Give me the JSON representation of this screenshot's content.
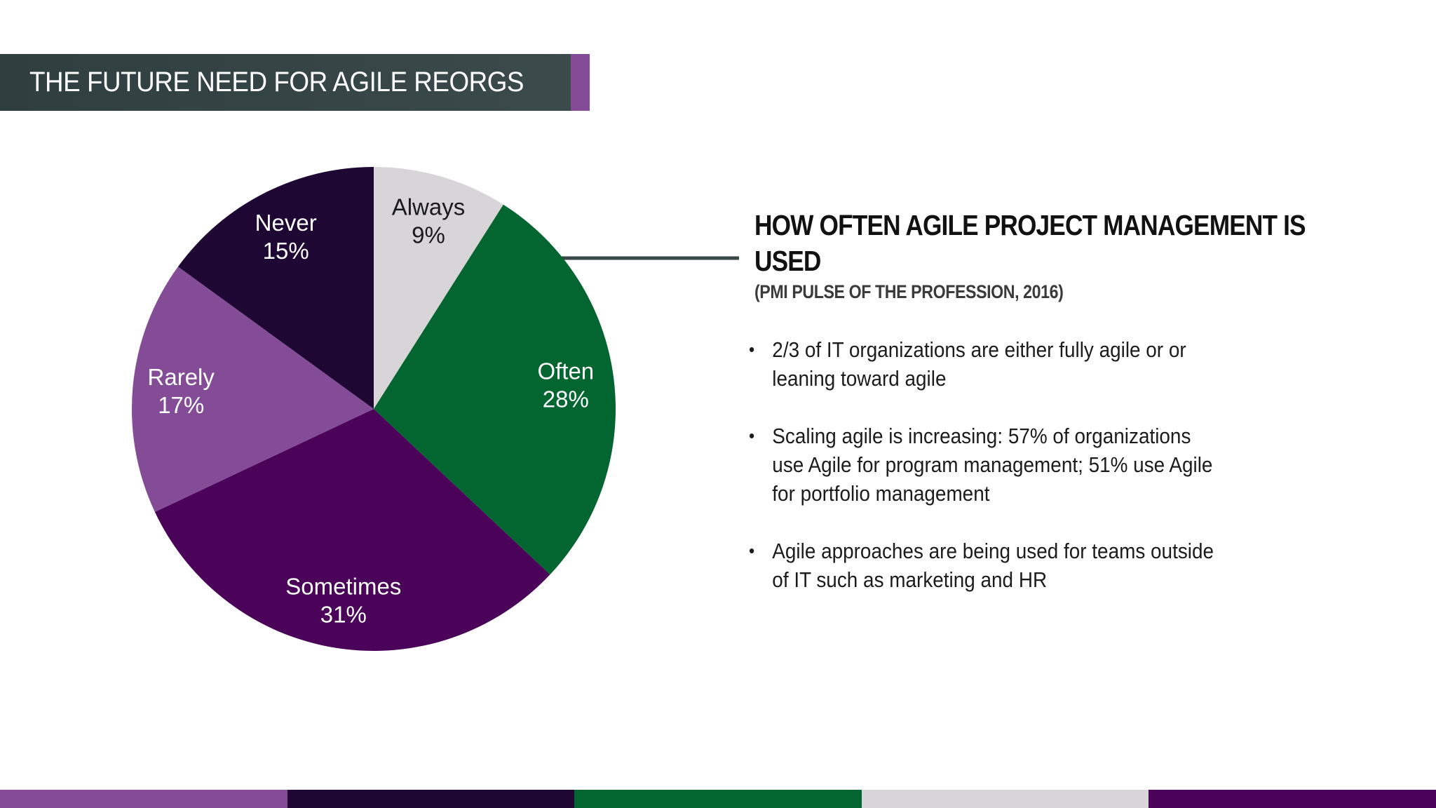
{
  "slide": {
    "title": "THE FUTURE NEED FOR AGILE REORGS"
  },
  "chart_data": {
    "type": "pie",
    "start_angle_deg": 0,
    "direction": "clockwise",
    "slices": [
      {
        "label": "Always",
        "value": 9,
        "value_label": "9%",
        "color": "#d7d5d8",
        "text_color": "#1a1a1a"
      },
      {
        "label": "Often",
        "value": 28,
        "value_label": "28%",
        "color": "#036530",
        "text_color": "#ffffff"
      },
      {
        "label": "Sometimes",
        "value": 31,
        "value_label": "31%",
        "color": "#4a0359",
        "text_color": "#ffffff"
      },
      {
        "label": "Rarely",
        "value": 17,
        "value_label": "17%",
        "color": "#844c97",
        "text_color": "#ffffff"
      },
      {
        "label": "Never",
        "value": 15,
        "value_label": "15%",
        "color": "#1e0833",
        "text_color": "#ffffff"
      }
    ]
  },
  "panel": {
    "heading": "HOW OFTEN AGILE PROJECT MANAGEMENT IS USED",
    "subheading": "(PMI PULSE OF THE PROFESSION, 2016)",
    "bullet_char": "•",
    "bullets": [
      "2/3 of IT organizations are either fully agile or or leaning toward agile",
      "Scaling agile is increasing: 57% of organizations use Agile for program management; 51% use Agile for portfolio management",
      "Agile approaches are being used for teams outside of IT such as marketing and HR"
    ]
  },
  "footer": {
    "colors": [
      "#844c97",
      "#1e0833",
      "#036530",
      "#d7d5d8",
      "#4a0359"
    ]
  }
}
